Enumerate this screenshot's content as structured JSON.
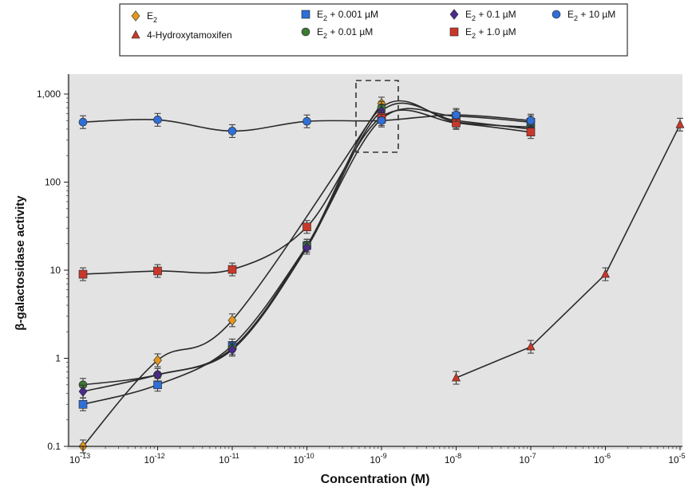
{
  "chart_data": {
    "type": "line",
    "xlabel": "Concentration (M)",
    "ylabel": "β-galactosidase activity",
    "xscale": "log",
    "yscale": "log",
    "xlim_exponent": [
      -13,
      -5
    ],
    "ylim": [
      0.1,
      1000
    ],
    "x_ticks": [
      {
        "base": "10",
        "exp": "-13"
      },
      {
        "base": "10",
        "exp": "-12"
      },
      {
        "base": "10",
        "exp": "-11"
      },
      {
        "base": "10",
        "exp": "-10"
      },
      {
        "base": "10",
        "exp": "-9"
      },
      {
        "base": "10",
        "exp": "-8"
      },
      {
        "base": "10",
        "exp": "-7"
      },
      {
        "base": "10",
        "exp": "-6"
      },
      {
        "base": "10",
        "exp": "-5"
      }
    ],
    "y_ticks": [
      {
        "value": 0.1,
        "label": "0.1"
      },
      {
        "value": 1,
        "label": "1"
      },
      {
        "value": 10,
        "label": "10"
      },
      {
        "value": 100,
        "label": "100"
      },
      {
        "value": 1000,
        "label": "1,000"
      }
    ],
    "legend_position": "top",
    "series": [
      {
        "name": "E2",
        "legend_label": "E",
        "legend_sub": "2",
        "legend_suffix": "",
        "marker": "diamond",
        "color": "#e0961e",
        "points": [
          [
            -13,
            0.1
          ],
          [
            -12,
            0.95
          ],
          [
            -11,
            2.7
          ],
          [
            -9,
            780
          ]
        ]
      },
      {
        "name": "E2 + 0.001 µM",
        "legend_label": "E",
        "legend_sub": "2",
        "legend_suffix": " + 0.001 µM",
        "marker": "square",
        "color": "#2f6fd6",
        "points": [
          [
            -13,
            0.3
          ],
          [
            -12,
            0.5
          ],
          [
            -11,
            1.4
          ],
          [
            -10,
            19
          ],
          [
            -9,
            520
          ],
          [
            -8,
            560
          ],
          [
            -7,
            480
          ]
        ]
      },
      {
        "name": "E2 + 0.01 µM",
        "legend_label": "E",
        "legend_sub": "2",
        "legend_suffix": " + 0.01 µM",
        "marker": "circle",
        "color": "#3d7a34",
        "points": [
          [
            -13,
            0.5
          ],
          [
            -12,
            0.65
          ],
          [
            -11,
            1.3
          ],
          [
            -10,
            19
          ],
          [
            -9,
            700
          ],
          [
            -8,
            480
          ],
          [
            -7,
            420
          ]
        ]
      },
      {
        "name": "E2 + 0.1 µM",
        "legend_label": "E",
        "legend_sub": "2",
        "legend_suffix": " + 0.1 µM",
        "marker": "diamond",
        "color": "#4b2a8a",
        "points": [
          [
            -13,
            0.42
          ],
          [
            -12,
            0.65
          ],
          [
            -11,
            1.25
          ],
          [
            -10,
            18
          ],
          [
            -9,
            640
          ],
          [
            -8,
            500
          ],
          [
            -7,
            400
          ]
        ]
      },
      {
        "name": "E2 + 1.0 µM",
        "legend_label": "E",
        "legend_sub": "2",
        "legend_suffix": " + 1.0 µM",
        "marker": "square",
        "color": "#c8382a",
        "points": [
          [
            -13,
            9
          ],
          [
            -12,
            9.8
          ],
          [
            -11,
            10.2
          ],
          [
            -10,
            31
          ],
          [
            -9,
            550
          ],
          [
            -8,
            470
          ],
          [
            -7,
            370
          ]
        ]
      },
      {
        "name": "E2 + 10 µM",
        "legend_label": "E",
        "legend_sub": "2",
        "legend_suffix": " + 10 µM",
        "marker": "circle",
        "color": "#2f6fd6",
        "points": [
          [
            -13,
            480
          ],
          [
            -12,
            510
          ],
          [
            -11,
            380
          ],
          [
            -10,
            490
          ],
          [
            -9,
            500
          ],
          [
            -8,
            580
          ],
          [
            -7,
            500
          ]
        ]
      },
      {
        "name": "4-Hydroxytamoxifen",
        "legend_label": "4-Hydroxytamoxifen",
        "legend_sub": "",
        "legend_suffix": "",
        "marker": "triangle",
        "color": "#c8382a",
        "points": [
          [
            -8,
            0.6
          ],
          [
            -7,
            1.35
          ],
          [
            -6,
            9
          ],
          [
            -5,
            450
          ]
        ]
      }
    ],
    "annotation": "dashed box around 10^-9 peak"
  },
  "colors": {
    "plot_background": "#e3e3e3",
    "page_background": "#ffffff",
    "curve": "#2a2a2a"
  }
}
